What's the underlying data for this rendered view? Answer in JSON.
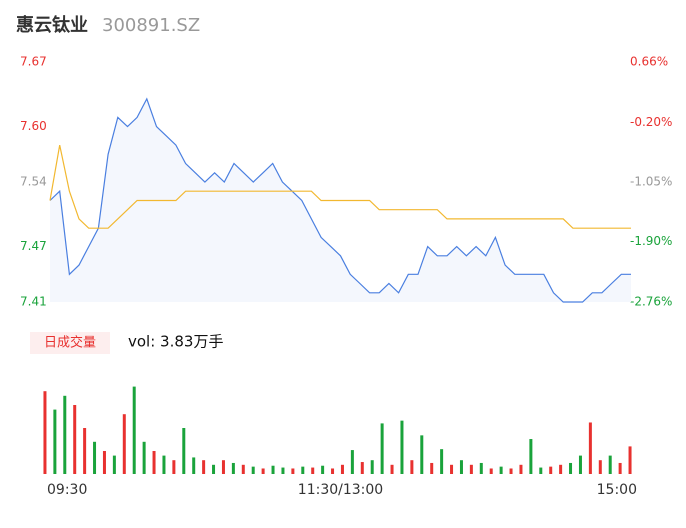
{
  "header": {
    "title": "惠云钛业",
    "code": "300891.SZ"
  },
  "chart_data": [
    {
      "type": "line",
      "x": [
        0,
        4,
        8,
        12,
        16,
        20,
        24,
        28,
        32,
        36,
        40,
        44,
        48,
        52,
        56,
        60,
        64,
        68,
        72,
        76,
        80,
        84,
        88,
        92,
        96,
        100,
        104,
        108,
        112,
        116,
        120,
        124,
        128,
        132,
        136,
        140,
        144,
        148,
        152,
        156,
        160,
        164,
        168,
        172,
        176,
        180,
        184,
        188,
        192,
        196,
        200,
        204,
        208,
        212,
        216,
        220,
        224,
        228,
        232,
        236,
        240
      ],
      "xlim": [
        0,
        240
      ],
      "xticks": [
        {
          "value": 0,
          "label": "09:30"
        },
        {
          "value": 120,
          "label": "11:30/13:00"
        },
        {
          "value": 240,
          "label": "15:00"
        }
      ],
      "ylim": [
        7.41,
        7.67
      ],
      "yticks": [
        7.67,
        {
          "value": 7.6,
          "label": "7.60"
        },
        7.54,
        7.47,
        7.41
      ],
      "y2lim": [
        -2.76,
        0.66
      ],
      "y2ticks": [
        {
          "value": 0.66,
          "label": "0.66%"
        },
        {
          "value": -0.2,
          "label": "-0.20%"
        },
        {
          "value": -1.05,
          "label": "-1.05%"
        },
        {
          "value": -1.9,
          "label": "-1.90%"
        },
        {
          "value": -2.76,
          "label": "-2.76%"
        }
      ],
      "tick_colors": [
        "#e8312f",
        "#e8312f",
        "#999999",
        "#1aa33b",
        "#1aa33b"
      ],
      "series": [
        {
          "color": "#4a7fe0",
          "values": [
            7.52,
            7.53,
            7.44,
            7.45,
            7.47,
            7.49,
            7.57,
            7.61,
            7.6,
            7.61,
            7.63,
            7.6,
            7.59,
            7.58,
            7.56,
            7.55,
            7.54,
            7.55,
            7.54,
            7.56,
            7.55,
            7.54,
            7.55,
            7.56,
            7.54,
            7.53,
            7.52,
            7.5,
            7.48,
            7.47,
            7.46,
            7.44,
            7.43,
            7.42,
            7.42,
            7.43,
            7.42,
            7.44,
            7.44,
            7.47,
            7.46,
            7.46,
            7.47,
            7.46,
            7.47,
            7.46,
            7.48,
            7.45,
            7.44,
            7.44,
            7.44,
            7.44,
            7.42,
            7.41,
            7.41,
            7.41,
            7.42,
            7.42,
            7.43,
            7.44,
            7.44
          ]
        },
        {
          "color": "#f2b830",
          "values": [
            7.52,
            7.58,
            7.53,
            7.5,
            7.49,
            7.49,
            7.49,
            7.5,
            7.51,
            7.52,
            7.52,
            7.52,
            7.52,
            7.52,
            7.53,
            7.53,
            7.53,
            7.53,
            7.53,
            7.53,
            7.53,
            7.53,
            7.53,
            7.53,
            7.53,
            7.53,
            7.53,
            7.53,
            7.52,
            7.52,
            7.52,
            7.52,
            7.52,
            7.52,
            7.51,
            7.51,
            7.51,
            7.51,
            7.51,
            7.51,
            7.51,
            7.5,
            7.5,
            7.5,
            7.5,
            7.5,
            7.5,
            7.5,
            7.5,
            7.5,
            7.5,
            7.5,
            7.5,
            7.5,
            7.49,
            7.49,
            7.49,
            7.49,
            7.49,
            7.49,
            7.49
          ]
        }
      ]
    },
    {
      "type": "bar",
      "label": "日成交量",
      "summary": "vol: 3.83万手",
      "ylim": [
        0,
        1000
      ],
      "values": [
        900,
        700,
        850,
        750,
        500,
        350,
        250,
        200,
        650,
        950,
        350,
        250,
        200,
        150,
        500,
        180,
        150,
        100,
        150,
        120,
        100,
        80,
        60,
        90,
        70,
        60,
        80,
        70,
        90,
        60,
        100,
        260,
        130,
        150,
        550,
        100,
        580,
        150,
        420,
        120,
        270,
        100,
        150,
        100,
        120,
        60,
        80,
        60,
        100,
        380,
        70,
        80,
        100,
        120,
        200,
        560,
        150,
        200,
        120,
        300
      ],
      "colors": [
        "#e8312f",
        "#1aa33b",
        "#1aa33b",
        "#e8312f",
        "#e8312f",
        "#1aa33b",
        "#e8312f",
        "#1aa33b",
        "#e8312f",
        "#1aa33b",
        "#1aa33b",
        "#e8312f",
        "#1aa33b",
        "#e8312f",
        "#1aa33b",
        "#1aa33b",
        "#e8312f",
        "#1aa33b",
        "#e8312f",
        "#1aa33b",
        "#e8312f",
        "#1aa33b",
        "#e8312f",
        "#1aa33b",
        "#1aa33b",
        "#e8312f",
        "#1aa33b",
        "#e8312f",
        "#1aa33b",
        "#e8312f",
        "#e8312f",
        "#1aa33b",
        "#e8312f",
        "#1aa33b",
        "#1aa33b",
        "#e8312f",
        "#1aa33b",
        "#e8312f",
        "#1aa33b",
        "#e8312f",
        "#1aa33b",
        "#e8312f",
        "#1aa33b",
        "#e8312f",
        "#1aa33b",
        "#e8312f",
        "#1aa33b",
        "#e8312f",
        "#e8312f",
        "#1aa33b",
        "#1aa33b",
        "#e8312f",
        "#e8312f",
        "#1aa33b",
        "#1aa33b",
        "#e8312f",
        "#e8312f",
        "#1aa33b",
        "#e8312f",
        "#e8312f"
      ]
    }
  ]
}
